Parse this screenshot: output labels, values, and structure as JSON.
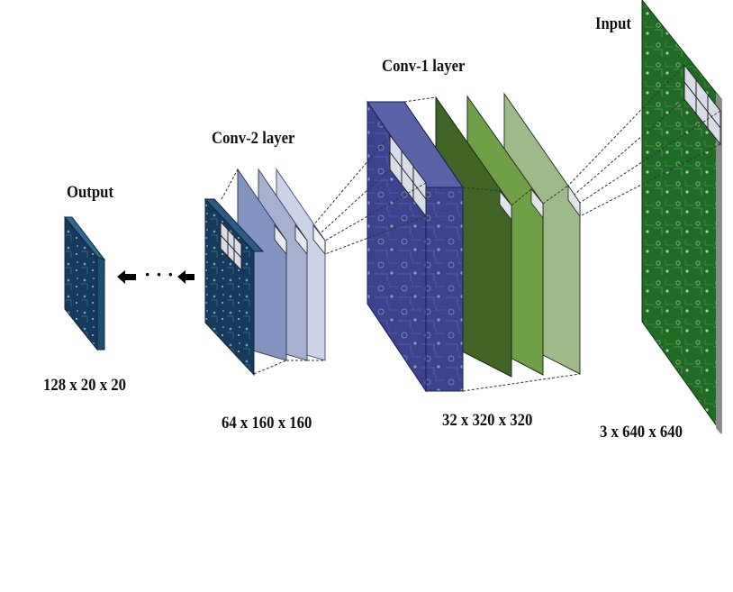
{
  "labels": {
    "input_title": "Input",
    "conv1_title": "Conv-1 layer",
    "conv2_title": "Conv-2 layer",
    "output_title": "Output",
    "input_dims": "3 x 640 x 640",
    "conv1_dims": "32 x 320 x 320",
    "conv2_dims": "64 x 160 x 160",
    "output_dims": "128 x 20 x 20",
    "ellipsis": "· · ·"
  },
  "colors": {
    "input_board": "#1f6a24",
    "conv1_front": "#3a3f8c",
    "conv1_map2": "#3f6426",
    "conv1_map3": "#6f9f46",
    "conv1_map4": "#9fba89",
    "conv2_front": "#1d3f66",
    "conv2_map2": "#8394c0",
    "conv2_map3": "#a7b1cf",
    "conv2_map4": "#cdd3e6",
    "output_block": "#1f4f6e"
  }
}
